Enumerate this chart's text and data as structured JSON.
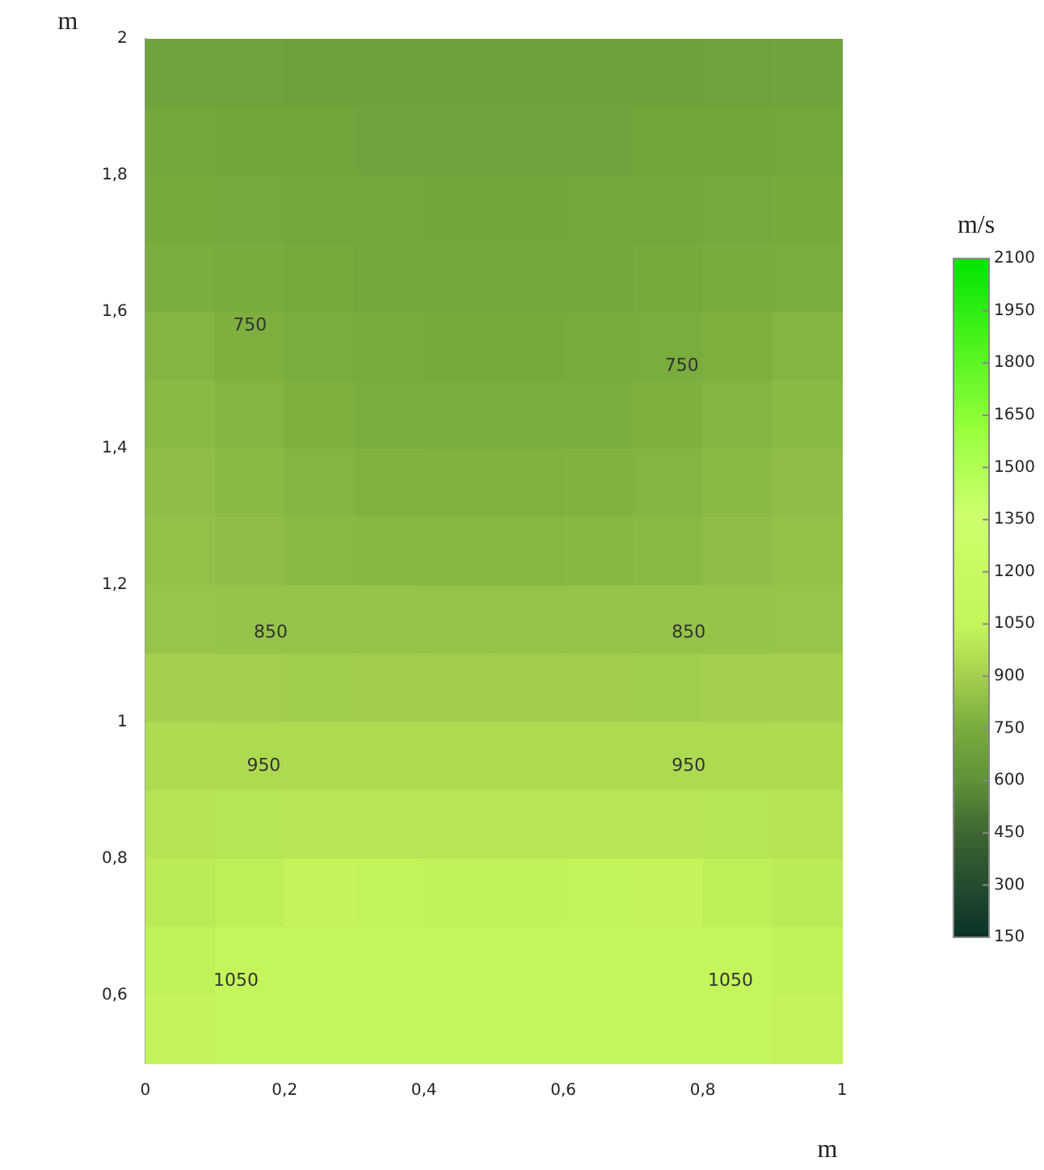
{
  "chart_data": {
    "type": "heatmap",
    "xlabel": "m",
    "ylabel": "m",
    "clabel": "m/s",
    "x": [
      0.05,
      0.15,
      0.25,
      0.35,
      0.45,
      0.55,
      0.65,
      0.75,
      0.85,
      0.95
    ],
    "y": [
      1.95,
      1.85,
      1.75,
      1.65,
      1.55,
      1.45,
      1.35,
      1.25,
      1.15,
      1.05,
      0.95,
      0.85,
      0.75,
      0.65,
      0.55
    ],
    "xlim": [
      0,
      1
    ],
    "ylim": [
      0.5,
      2
    ],
    "xticks": [
      0,
      {
        "value": 0.2,
        "label": "0,2"
      },
      {
        "value": 0.4,
        "label": "0,4"
      },
      {
        "value": 0.6,
        "label": "0,6"
      },
      {
        "value": 0.8,
        "label": "0,8"
      },
      1
    ],
    "yticks": [
      {
        "value": 0.6,
        "label": "0,6"
      },
      {
        "value": 0.8,
        "label": "0,8"
      },
      1,
      {
        "value": 1.2,
        "label": "1,2"
      },
      {
        "value": 1.4,
        "label": "1,4"
      },
      {
        "value": 1.6,
        "label": "1,6"
      },
      {
        "value": 1.8,
        "label": "1,8"
      },
      2
    ],
    "clim": [
      150,
      2100
    ],
    "cticks": [
      150,
      300,
      450,
      600,
      750,
      900,
      1050,
      1200,
      1350,
      1500,
      1650,
      1800,
      1950,
      2100
    ],
    "cells": [
      [
        700,
        696,
        693,
        691,
        690,
        690,
        691,
        693,
        696,
        700
      ],
      [
        720,
        712,
        706,
        702,
        700,
        700,
        702,
        706,
        712,
        720
      ],
      [
        740,
        730,
        722,
        717,
        715,
        715,
        717,
        722,
        730,
        740
      ],
      [
        760,
        746,
        736,
        728,
        725,
        725,
        728,
        736,
        746,
        760
      ],
      [
        790,
        768,
        752,
        742,
        738,
        738,
        742,
        752,
        768,
        790
      ],
      [
        810,
        790,
        768,
        756,
        752,
        752,
        756,
        768,
        790,
        810
      ],
      [
        825,
        808,
        790,
        780,
        775,
        775,
        780,
        790,
        808,
        825
      ],
      [
        840,
        825,
        810,
        803,
        800,
        800,
        803,
        810,
        825,
        840
      ],
      [
        855,
        850,
        847,
        845,
        845,
        845,
        845,
        847,
        850,
        855
      ],
      [
        900,
        895,
        892,
        890,
        890,
        890,
        890,
        892,
        895,
        900
      ],
      [
        945,
        942,
        940,
        940,
        940,
        940,
        940,
        940,
        942,
        945
      ],
      [
        975,
        982,
        985,
        985,
        985,
        985,
        985,
        985,
        982,
        975
      ],
      [
        1005,
        1025,
        1045,
        1038,
        1035,
        1035,
        1038,
        1045,
        1025,
        1005
      ],
      [
        1030,
        1050,
        1065,
        1065,
        1065,
        1065,
        1065,
        1065,
        1050,
        1030
      ],
      [
        1045,
        1065,
        1080,
        1080,
        1080,
        1080,
        1080,
        1080,
        1065,
        1045
      ]
    ],
    "annotations": [
      "750",
      "750",
      "850",
      "850",
      "950",
      "950",
      "1050",
      "1050"
    ],
    "grid": false,
    "legend": false
  }
}
